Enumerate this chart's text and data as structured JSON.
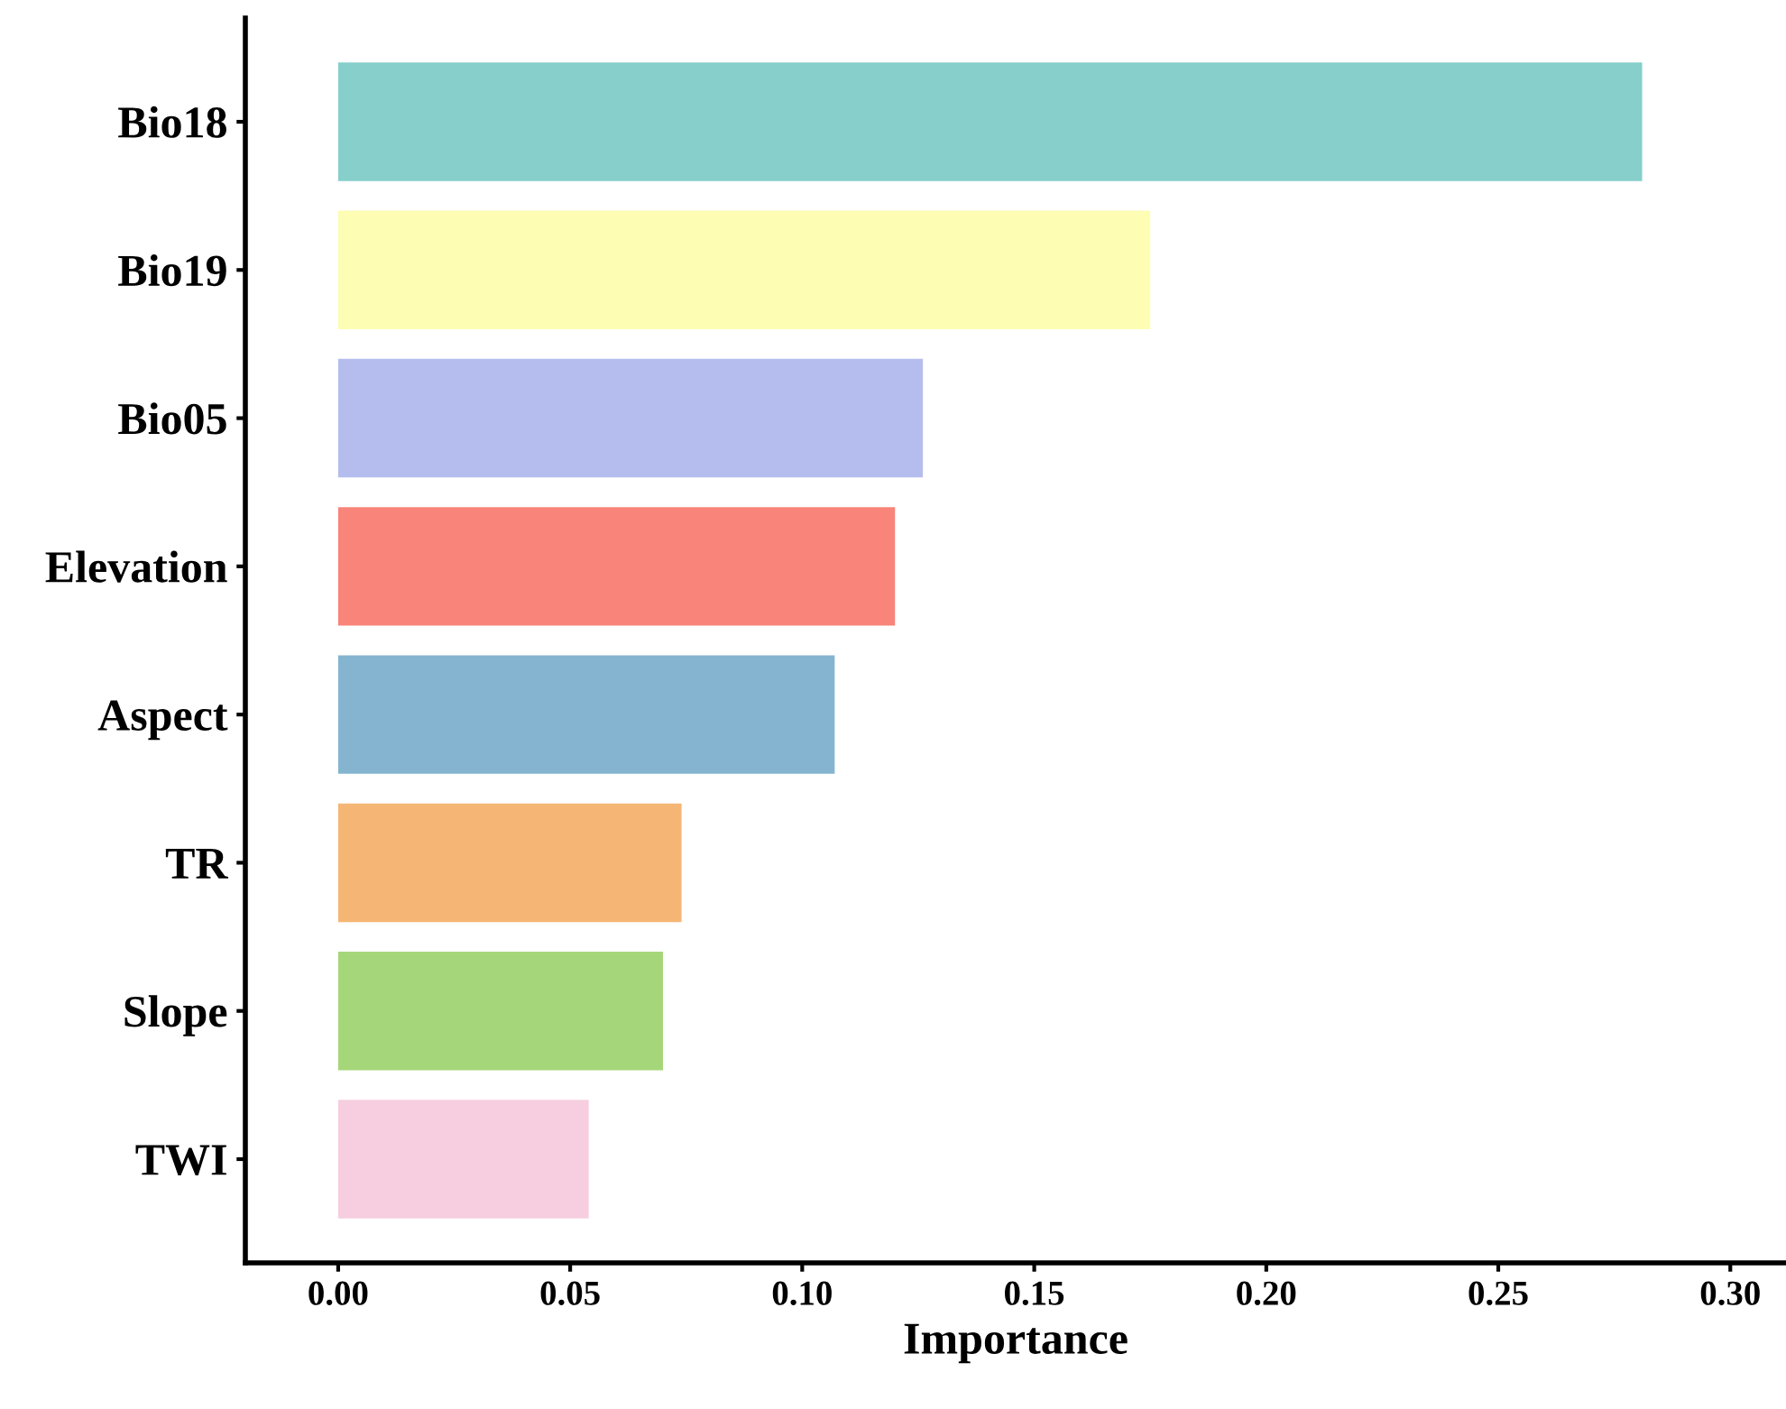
{
  "chart_data": {
    "type": "bar",
    "orientation": "horizontal",
    "xlabel": "Importance",
    "categories": [
      "Bio18",
      "Bio19",
      "Bio05",
      "Elevation",
      "Aspect",
      "TR",
      "Slope",
      "TWI"
    ],
    "values": [
      0.281,
      0.175,
      0.126,
      0.12,
      0.107,
      0.074,
      0.07,
      0.054
    ],
    "colors": [
      "#86cfca",
      "#fdfdb3",
      "#b4bdee",
      "#f8847a",
      "#84b4cf",
      "#f5b675",
      "#a6d67a",
      "#f6cedf"
    ],
    "xlim": [
      -0.02,
      0.312
    ],
    "xticks": [
      {
        "value": 0,
        "label": "0.00"
      },
      0.05,
      {
        "value": 0.1,
        "label": "0.10"
      },
      0.15,
      {
        "value": 0.2,
        "label": "0.20"
      },
      0.25,
      {
        "value": 0.3,
        "label": "0.30"
      }
    ],
    "grid": false,
    "legend": false
  }
}
